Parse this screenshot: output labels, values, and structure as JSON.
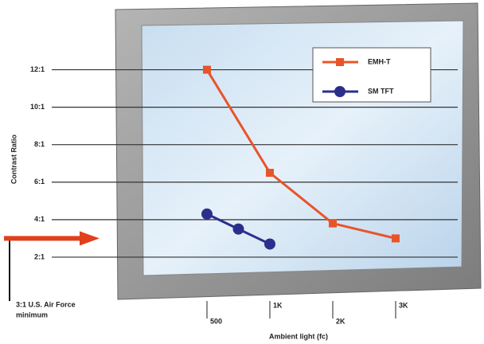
{
  "chart_data": {
    "type": "line",
    "xlabel": "Ambient light (fc)",
    "ylabel": "Contrast Ratio",
    "ylim": [
      0,
      13
    ],
    "yticks": [
      {
        "value": 2,
        "label": "2:1"
      },
      {
        "value": 4,
        "label": "4:1"
      },
      {
        "value": 6,
        "label": "6:1"
      },
      {
        "value": 8,
        "label": "8:1"
      },
      {
        "value": 10,
        "label": "10:1"
      },
      {
        "value": 12,
        "label": "12:1"
      }
    ],
    "xticks": [
      500,
      {
        "value": 1000,
        "label": "1K"
      },
      {
        "value": 2000,
        "label": "2K"
      },
      {
        "value": 3000,
        "label": "3K"
      }
    ],
    "grid": true,
    "legend": "upper right",
    "series": [
      {
        "name": "EMH-T",
        "color": "#e8542a",
        "marker": "square",
        "x": [
          500,
          1000,
          2000,
          3000
        ],
        "values": [
          12,
          6.5,
          3.8,
          3
        ]
      },
      {
        "name": "SM TFT",
        "color": "#2b2f8c",
        "marker": "circle",
        "x": [
          500,
          750,
          1000
        ],
        "values": [
          4.3,
          3.5,
          2.7
        ]
      }
    ],
    "annotation": {
      "text": [
        "3:1 U.S. Air Force",
        "minimum"
      ],
      "value": 3
    }
  }
}
